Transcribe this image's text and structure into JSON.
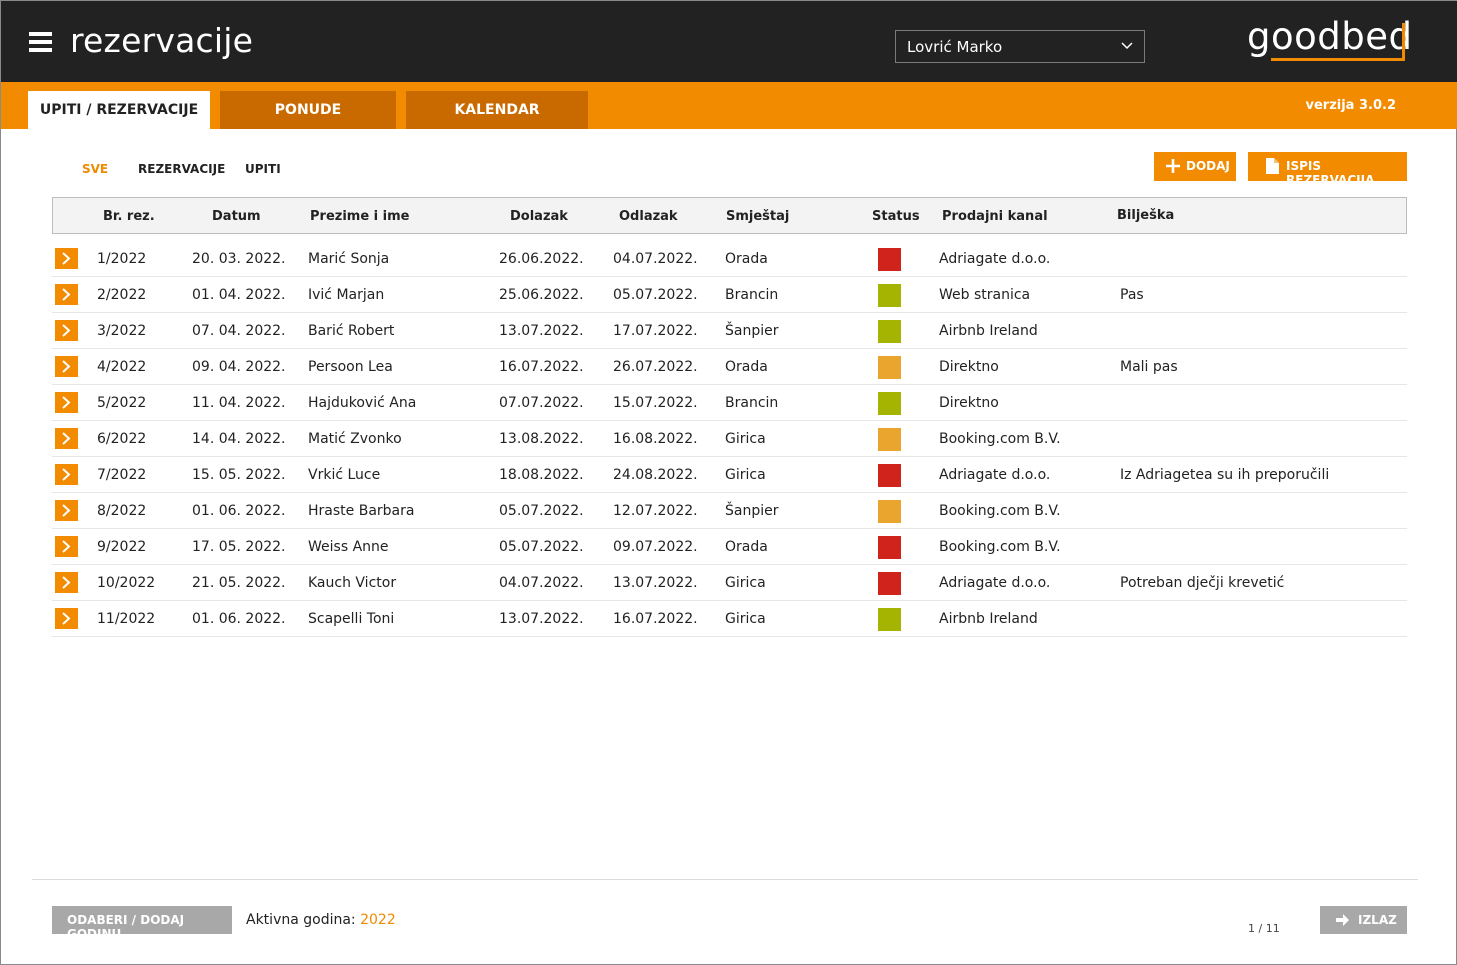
{
  "header": {
    "menu_icon": "hamburger-menu-icon",
    "title": "rezervacije",
    "user_select_value": "Lovrić Marko",
    "logo": "goodbed"
  },
  "tabs": [
    {
      "label": "UPITI / REZERVACIJE",
      "active": true
    },
    {
      "label": "PONUDE",
      "active": false
    },
    {
      "label": "KALENDAR",
      "active": false
    }
  ],
  "version": "verzija 3.0.2",
  "filters": {
    "sve": "SVE",
    "rezervacije": "REZERVACIJE",
    "upiti": "UPITI",
    "selected": "SVE"
  },
  "actions": {
    "dodaj": "DODAJ",
    "ispis": "ISPIS REZERVACIJA"
  },
  "columns": {
    "br_rez": "Br. rez.",
    "datum": "Datum",
    "ime": "Prezime i ime",
    "dolazak": "Dolazak",
    "odlazak": "Odlazak",
    "smjestaj": "Smještaj",
    "status": "Status",
    "kanal": "Prodajni kanal",
    "biljeska": "Bilješka"
  },
  "status_colors": {
    "red": "#d0231c",
    "green": "#a4b400",
    "yellow": "#eaa52e"
  },
  "rows": [
    {
      "br": "1/2022",
      "datum": "20. 03. 2022.",
      "ime": "Marić Sonja",
      "dolazak": "26.06.2022.",
      "odlazak": "04.07.2022.",
      "smjestaj": "Orada",
      "status": "red",
      "kanal": "Adriagate d.o.o.",
      "biljeska": ""
    },
    {
      "br": "2/2022",
      "datum": "01. 04. 2022.",
      "ime": "Ivić Marjan",
      "dolazak": "25.06.2022.",
      "odlazak": "05.07.2022.",
      "smjestaj": "Brancin",
      "status": "green",
      "kanal": "Web stranica",
      "biljeska": "Pas"
    },
    {
      "br": "3/2022",
      "datum": "07. 04. 2022.",
      "ime": "Barić Robert",
      "dolazak": "13.07.2022.",
      "odlazak": "17.07.2022.",
      "smjestaj": "Šanpier",
      "status": "green",
      "kanal": "Airbnb Ireland",
      "biljeska": ""
    },
    {
      "br": "4/2022",
      "datum": "09. 04. 2022.",
      "ime": "Persoon Lea",
      "dolazak": "16.07.2022.",
      "odlazak": "26.07.2022.",
      "smjestaj": "Orada",
      "status": "yellow",
      "kanal": "Direktno",
      "biljeska": "Mali pas"
    },
    {
      "br": "5/2022",
      "datum": "11. 04. 2022.",
      "ime": "Hajduković Ana",
      "dolazak": "07.07.2022.",
      "odlazak": "15.07.2022.",
      "smjestaj": "Brancin",
      "status": "green",
      "kanal": "Direktno",
      "biljeska": ""
    },
    {
      "br": "6/2022",
      "datum": "14. 04. 2022.",
      "ime": "Matić Zvonko",
      "dolazak": "13.08.2022.",
      "odlazak": "16.08.2022.",
      "smjestaj": "Girica",
      "status": "yellow",
      "kanal": "Booking.com B.V.",
      "biljeska": ""
    },
    {
      "br": "7/2022",
      "datum": "15. 05. 2022.",
      "ime": "Vrkić Luce",
      "dolazak": "18.08.2022.",
      "odlazak": "24.08.2022.",
      "smjestaj": "Girica",
      "status": "red",
      "kanal": "Adriagate d.o.o.",
      "biljeska": "Iz Adriagetea su ih preporučili"
    },
    {
      "br": "8/2022",
      "datum": "01. 06. 2022.",
      "ime": "Hraste Barbara",
      "dolazak": "05.07.2022.",
      "odlazak": "12.07.2022.",
      "smjestaj": "Šanpier",
      "status": "yellow",
      "kanal": "Booking.com B.V.",
      "biljeska": ""
    },
    {
      "br": "9/2022",
      "datum": "17. 05. 2022.",
      "ime": "Weiss Anne",
      "dolazak": "05.07.2022.",
      "odlazak": "09.07.2022.",
      "smjestaj": "Orada",
      "status": "red",
      "kanal": "Booking.com B.V.",
      "biljeska": ""
    },
    {
      "br": "10/2022",
      "datum": "21. 05. 2022.",
      "ime": "Kauch Victor",
      "dolazak": "04.07.2022.",
      "odlazak": "13.07.2022.",
      "smjestaj": "Girica",
      "status": "red",
      "kanal": "Adriagate d.o.o.",
      "biljeska": "Potreban dječji krevetić"
    },
    {
      "br": "11/2022",
      "datum": "01. 06. 2022.",
      "ime": "Scapelli Toni",
      "dolazak": "13.07.2022.",
      "odlazak": "16.07.2022.",
      "smjestaj": "Girica",
      "status": "green",
      "kanal": "Airbnb Ireland",
      "biljeska": ""
    }
  ],
  "footer": {
    "select_year_button": "ODABERI / DODAJ GODINU",
    "active_year_label": "Aktivna godina:",
    "active_year": "2022",
    "pager": "1 / 11",
    "exit_button": "IZLAZ"
  }
}
